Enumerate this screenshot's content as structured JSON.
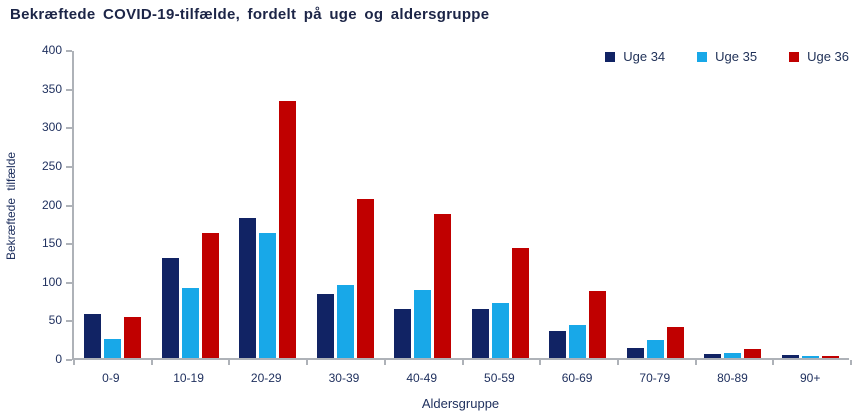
{
  "chart_data": {
    "type": "bar",
    "title": "Bekræftede COVID-19-tilfælde, fordelt på uge og aldersgruppe",
    "xlabel": "Aldersgruppe",
    "ylabel": "Bekræftede tilfælde",
    "categories": [
      "0-9",
      "10-19",
      "20-29",
      "30-39",
      "40-49",
      "50-59",
      "60-69",
      "70-79",
      "80-89",
      "90+"
    ],
    "series": [
      {
        "name": "Uge 34",
        "color": "#112364",
        "values": [
          57,
          130,
          182,
          83,
          64,
          64,
          35,
          13,
          5,
          4
        ]
      },
      {
        "name": "Uge 35",
        "color": "#18a8e8",
        "values": [
          25,
          91,
          163,
          95,
          89,
          72,
          43,
          23,
          7,
          3
        ]
      },
      {
        "name": "Uge 36",
        "color": "#c00000",
        "values": [
          53,
          163,
          335,
          207,
          187,
          143,
          87,
          40,
          12,
          2
        ]
      }
    ],
    "ylim": [
      0,
      400
    ],
    "ytick_step": 50,
    "grid": false,
    "legend_position": "top-right",
    "axis_color": "#aeb2b8",
    "text_color": "#20315f",
    "title_color": "#1c2547"
  }
}
